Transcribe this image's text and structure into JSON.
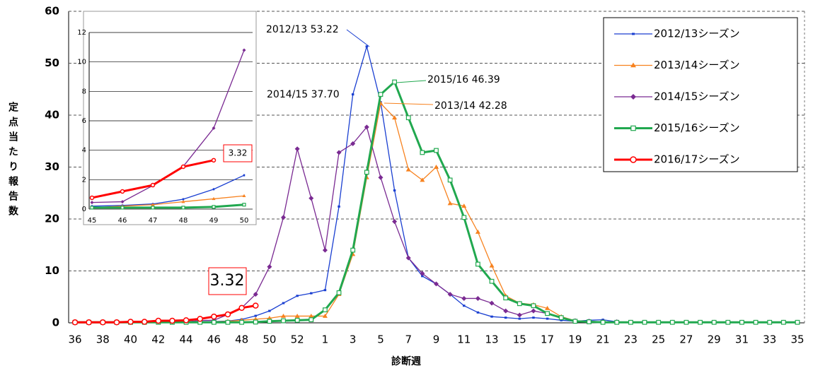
{
  "chart_data": [
    {
      "type": "line",
      "xlabel": "診断週",
      "ylabel": "定点当たり報告数",
      "categories": [
        "36",
        null,
        "38",
        null,
        "40",
        null,
        "42",
        null,
        "44",
        null,
        "46",
        null,
        "48",
        null,
        "50",
        null,
        "52",
        null,
        "1",
        null,
        "3",
        null,
        "5",
        null,
        "7",
        null,
        "9",
        null,
        "11",
        null,
        "13",
        null,
        "15",
        null,
        "17",
        null,
        "19",
        null,
        "21",
        null,
        "23",
        null,
        "25",
        null,
        "27",
        null,
        "29",
        null,
        "31",
        null,
        "33",
        null,
        "35"
      ],
      "ylim": [
        0,
        60
      ],
      "yticks": [
        0,
        10,
        20,
        30,
        40,
        50,
        60
      ],
      "grid": true,
      "legend": "upper right",
      "series": [
        {
          "name": "2012/13シーズン",
          "color": "#1a3fd1",
          "marker": "dash",
          "values": [
            0.1,
            0.1,
            0.1,
            0.1,
            0.1,
            0.1,
            0.1,
            0.1,
            0.1,
            0.2,
            0.25,
            0.35,
            0.67,
            1.35,
            2.3,
            3.8,
            5.2,
            5.7,
            6.3,
            22.4,
            44,
            53.22,
            42.5,
            25.5,
            12.5,
            9,
            7.5,
            5.5,
            3.3,
            2,
            1.2,
            1,
            0.8,
            1,
            0.8,
            0.5,
            0.3,
            0.5,
            0.6,
            0.2,
            0.1,
            0.1,
            0.1,
            0.1,
            0.1,
            0.1,
            0.1,
            0.1,
            0.1,
            0.1,
            0.1,
            0.1,
            0.1
          ]
        },
        {
          "name": "2013/14シーズン",
          "color": "#f7821f",
          "marker": "triangle",
          "values": [
            0.1,
            0.1,
            0.1,
            0.1,
            0.1,
            0.1,
            0.1,
            0.1,
            0.1,
            0.1,
            0.2,
            0.3,
            0.5,
            0.7,
            0.9,
            1.3,
            1.3,
            1.3,
            1.3,
            5.5,
            13.2,
            28,
            42.28,
            39.5,
            29.5,
            27.5,
            30,
            23,
            22.5,
            17.5,
            11,
            5.2,
            3.8,
            3.5,
            2.8,
            1.2,
            0.4,
            0.3,
            0.2,
            0.1,
            0.1,
            0.1,
            0.1,
            0.1,
            0.1,
            0.1,
            0.1,
            0.1,
            0.1,
            0.1,
            0.1,
            0.1,
            0.1
          ]
        },
        {
          "name": "2014/15シーズン",
          "color": "#7a2a92",
          "marker": "diamond",
          "values": [
            0.2,
            0.2,
            0.2,
            0.2,
            0.2,
            0.2,
            0.2,
            0.2,
            0.2,
            0.45,
            0.5,
            1.6,
            2.9,
            5.5,
            10.8,
            20.3,
            33.5,
            24,
            14,
            32.8,
            34.5,
            37.7,
            28,
            19.5,
            12.5,
            9.5,
            7.5,
            5.5,
            4.7,
            4.7,
            3.8,
            2.3,
            1.5,
            2.3,
            1.8,
            1,
            0.4,
            0.3,
            0.2,
            0.2,
            0.1,
            0.1,
            0.1,
            0.1,
            0.1,
            0.1,
            0.1,
            0.1,
            0.1,
            0.1,
            0.1,
            0.1,
            0.1
          ]
        },
        {
          "name": "2015/16シーズン",
          "color": "#21a84f",
          "marker": "square",
          "values": [
            0.1,
            0.1,
            0.1,
            0.1,
            0.1,
            0.1,
            0.1,
            0.1,
            0.1,
            0.1,
            0.1,
            0.1,
            0.1,
            0.15,
            0.3,
            0.4,
            0.5,
            0.6,
            2.5,
            5.8,
            14,
            29,
            44,
            46.39,
            39.5,
            32.8,
            33.2,
            27.5,
            20.3,
            11.3,
            8,
            4.8,
            3.7,
            3.3,
            1.8,
            1,
            0.3,
            0.2,
            0.1,
            0.1,
            0.1,
            0.1,
            0.1,
            0.1,
            0.1,
            0.1,
            0.1,
            0.1,
            0.1,
            0.1,
            0.1,
            0.1,
            0.1
          ]
        },
        {
          "name": "2016/17シーズン",
          "color": "#ff0000",
          "marker": "circle",
          "values": [
            0.1,
            0.1,
            0.1,
            0.1,
            0.2,
            0.2,
            0.4,
            0.4,
            0.5,
            0.77,
            1.2,
            1.63,
            2.88,
            3.32,
            null,
            null,
            null,
            null,
            null,
            null,
            null,
            null,
            null,
            null,
            null,
            null,
            null,
            null,
            null,
            null,
            null,
            null,
            null,
            null,
            null,
            null,
            null,
            null,
            null,
            null,
            null,
            null,
            null,
            null,
            null,
            null,
            null,
            null,
            null,
            null,
            null,
            null,
            null
          ]
        }
      ],
      "annotations": [
        {
          "text": "2012/13 53.22",
          "color": "#1a3fd1"
        },
        {
          "text": "2015/16 46.39",
          "color": "#21a84f"
        },
        {
          "text": "2014/15 37.70",
          "color": "#7a2a92"
        },
        {
          "text": "2013/14 42.28",
          "color": "#f7821f"
        },
        {
          "text": "3.32",
          "color": "#ff0000"
        }
      ]
    },
    {
      "type": "line",
      "categories": [
        "45",
        "46",
        "47",
        "48",
        "49",
        "50"
      ],
      "ylim": [
        0,
        12
      ],
      "yticks": [
        0,
        2,
        4,
        6,
        8,
        10,
        12
      ],
      "grid": true,
      "series": [
        {
          "color": "#1a3fd1",
          "marker": "dash",
          "values": [
            0.2,
            0.25,
            0.35,
            0.67,
            1.35,
            2.3
          ]
        },
        {
          "color": "#f7821f",
          "marker": "triangle",
          "values": [
            0.1,
            0.2,
            0.3,
            0.5,
            0.7,
            0.9
          ]
        },
        {
          "color": "#7a2a92",
          "marker": "diamond",
          "values": [
            0.45,
            0.5,
            1.6,
            2.9,
            5.5,
            10.8
          ]
        },
        {
          "color": "#21a84f",
          "marker": "square",
          "values": [
            0.1,
            0.1,
            0.1,
            0.1,
            0.15,
            0.3
          ]
        },
        {
          "color": "#ff0000",
          "marker": "circle",
          "values": [
            0.77,
            1.2,
            1.63,
            2.88,
            3.32,
            null
          ]
        }
      ],
      "annotations": [
        {
          "text": "3.32",
          "color": "#ff0000"
        }
      ]
    }
  ]
}
